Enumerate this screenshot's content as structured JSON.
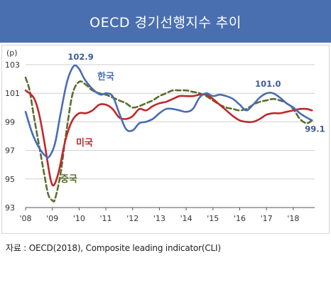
{
  "title": "OECD 경기선행지수 추이",
  "source": "자료 : OECD(2018), Composite leading indicator(CLI)",
  "chart_data": {
    "type": "line",
    "ylabel": "(p)",
    "ylim": [
      93,
      103
    ],
    "yticks": [
      103,
      101,
      99,
      97,
      95,
      93
    ],
    "xlim": [
      2008.0,
      2018.8
    ],
    "xticks": [
      {
        "value": 2008,
        "label": "'08"
      },
      {
        "value": 2009,
        "label": "'09"
      },
      {
        "value": 2010,
        "label": "'10"
      },
      {
        "value": 2011,
        "label": "'11"
      },
      {
        "value": 2012,
        "label": "'12"
      },
      {
        "value": 2013,
        "label": "'13"
      },
      {
        "value": 2014,
        "label": "'14"
      },
      {
        "value": 2015,
        "label": "'15"
      },
      {
        "value": 2016,
        "label": "'16"
      },
      {
        "value": 2017,
        "label": "'17"
      },
      {
        "value": 2018,
        "label": "'18"
      }
    ],
    "grid": "horizontal",
    "series": [
      {
        "name": "한국",
        "color": "#4a6cb4",
        "dash": "solid",
        "x": [
          2008.0,
          2008.25,
          2008.5,
          2008.75,
          2008.9,
          2009.1,
          2009.3,
          2009.55,
          2009.8,
          2010.0,
          2010.2,
          2010.5,
          2010.8,
          2011.0,
          2011.25,
          2011.5,
          2011.75,
          2012.0,
          2012.25,
          2012.5,
          2012.75,
          2013.0,
          2013.25,
          2013.5,
          2013.75,
          2014.0,
          2014.25,
          2014.5,
          2014.75,
          2015.0,
          2015.25,
          2015.5,
          2015.75,
          2016.0,
          2016.25,
          2016.5,
          2016.75,
          2017.0,
          2017.25,
          2017.5,
          2017.75,
          2018.0,
          2018.25,
          2018.5,
          2018.7
        ],
        "y": [
          99.7,
          98.2,
          97.2,
          96.6,
          96.6,
          97.5,
          99.5,
          101.8,
          102.9,
          102.7,
          102.0,
          101.3,
          100.9,
          101.0,
          100.8,
          99.6,
          98.5,
          98.4,
          98.9,
          99.0,
          99.2,
          99.6,
          99.9,
          99.9,
          99.8,
          99.7,
          99.9,
          100.7,
          101.0,
          100.8,
          100.9,
          100.8,
          100.6,
          100.2,
          99.8,
          100.2,
          100.7,
          101.0,
          101.0,
          100.7,
          100.3,
          100.0,
          99.6,
          99.3,
          99.1
        ]
      },
      {
        "name": "미국",
        "color": "#c0282b",
        "dash": "solid",
        "x": [
          2008.0,
          2008.3,
          2008.5,
          2008.7,
          2008.9,
          2009.0,
          2009.1,
          2009.25,
          2009.5,
          2009.75,
          2010.0,
          2010.25,
          2010.5,
          2010.75,
          2011.0,
          2011.25,
          2011.5,
          2011.75,
          2012.0,
          2012.25,
          2012.5,
          2012.75,
          2013.0,
          2013.25,
          2013.5,
          2013.75,
          2014.0,
          2014.25,
          2014.5,
          2014.75,
          2015.0,
          2015.25,
          2015.5,
          2015.75,
          2016.0,
          2016.25,
          2016.5,
          2016.75,
          2017.0,
          2017.25,
          2017.5,
          2017.75,
          2018.0,
          2018.25,
          2018.5,
          2018.7
        ],
        "y": [
          101.2,
          100.7,
          99.6,
          97.6,
          95.3,
          94.6,
          94.7,
          95.6,
          97.8,
          99.1,
          99.6,
          99.6,
          99.8,
          100.2,
          100.2,
          99.9,
          99.3,
          99.2,
          99.4,
          99.9,
          99.8,
          100.1,
          100.3,
          100.4,
          100.6,
          100.8,
          100.8,
          100.8,
          100.9,
          100.9,
          100.6,
          100.2,
          99.8,
          99.4,
          99.1,
          99.0,
          99.0,
          99.2,
          99.5,
          99.6,
          99.6,
          99.7,
          99.8,
          99.9,
          99.9,
          99.8
        ]
      },
      {
        "name": "중국",
        "color": "#5b6e2f",
        "dash": "dashed",
        "x": [
          2008.0,
          2008.15,
          2008.3,
          2008.5,
          2008.7,
          2008.85,
          2009.0,
          2009.1,
          2009.3,
          2009.5,
          2009.75,
          2010.0,
          2010.25,
          2010.5,
          2010.75,
          2011.0,
          2011.25,
          2011.5,
          2011.75,
          2012.0,
          2012.25,
          2012.5,
          2012.75,
          2013.0,
          2013.25,
          2013.5,
          2013.75,
          2014.0,
          2014.25,
          2014.5,
          2014.75,
          2015.0,
          2015.25,
          2015.5,
          2015.75,
          2016.0,
          2016.25,
          2016.5,
          2016.75,
          2017.0,
          2017.25,
          2017.5,
          2017.75,
          2018.0,
          2018.25,
          2018.5,
          2018.7
        ],
        "y": [
          102.1,
          101.2,
          99.5,
          97.4,
          95.3,
          93.9,
          93.5,
          93.6,
          95.3,
          98.0,
          100.9,
          101.8,
          101.6,
          101.2,
          101.0,
          100.9,
          100.7,
          100.5,
          100.3,
          100.0,
          100.1,
          100.3,
          100.5,
          100.8,
          101.0,
          101.2,
          101.2,
          101.2,
          101.1,
          101.0,
          100.8,
          100.5,
          100.2,
          100.0,
          99.9,
          99.8,
          99.9,
          100.2,
          100.4,
          100.5,
          100.6,
          100.5,
          100.3,
          99.9,
          99.2,
          98.9,
          99.1
        ]
      }
    ],
    "annotations": [
      {
        "text": "102.9",
        "x": 2010.0,
        "y": 102.9
      },
      {
        "text": "101.0",
        "x": 2017.0,
        "y": 101.0
      },
      {
        "text": "99.1",
        "x": 2018.7,
        "y": 99.1
      }
    ]
  }
}
